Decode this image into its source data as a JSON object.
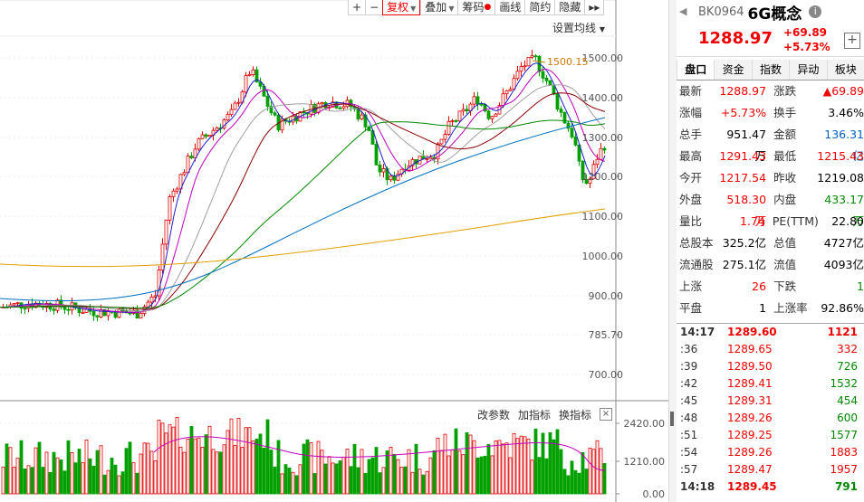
{
  "toolbar": {
    "items": [
      {
        "label": "+"
      },
      {
        "label": "−"
      },
      {
        "label": "复权"
      },
      {
        "label": "叠加"
      },
      {
        "label": "筹码"
      },
      {
        "label": "画线"
      },
      {
        "label": "简约"
      },
      {
        "label": "隐藏"
      },
      {
        "label": "▸▸"
      }
    ],
    "ma_setting": "设置均线"
  },
  "price_axis": [
    "1500.00",
    "1400.00",
    "1300.00",
    "1200.00",
    "1100.00",
    "1000.00",
    "900.00",
    "785.70",
    "700.00"
  ],
  "high_marker": "1500.15",
  "volume": {
    "buttons": {
      "params": "改参数",
      "add": "加指标",
      "switch": "换指标",
      "close": "×"
    },
    "axis": [
      "2420.00",
      "1210.00",
      "0.00"
    ]
  },
  "colors": {
    "up": "#e00000",
    "down": "#00a000",
    "ma5": "#1f1fd0",
    "ma10": "#c000c0",
    "ma20": "#a0a0a0",
    "ma30": "#8b0000",
    "ma60": "#008800",
    "ma120": "#0070c0",
    "ma250": "#e0a000"
  },
  "quote": {
    "code": "BK0964",
    "name": "6G概念",
    "last": "1288.97",
    "change": "+69.89",
    "change_pct": "+5.73%",
    "tabs": [
      "盘口",
      "资金",
      "指数",
      "异动",
      "板块"
    ],
    "rows": [
      {
        "l1": "最新",
        "v1": "1288.97",
        "c1": "red",
        "l2": "涨跌",
        "v2": "▲69.89",
        "c2": "red"
      },
      {
        "l1": "涨幅",
        "v1": "+5.73%",
        "c1": "red",
        "l2": "换手",
        "v2": "3.46%",
        "c2": "blk"
      },
      {
        "l1": "总手",
        "v1": "951.47万",
        "c1": "blk",
        "l2": "金额",
        "v2": "136.31亿",
        "c2": "blue"
      },
      {
        "l1": "最高",
        "v1": "1291.43",
        "c1": "red",
        "l2": "最低",
        "v2": "1215.43",
        "c2": "red"
      },
      {
        "l1": "今开",
        "v1": "1217.54",
        "c1": "red",
        "l2": "昨收",
        "v2": "1219.08",
        "c2": "blk"
      },
      {
        "l1": "外盘",
        "v1": "518.30万",
        "c1": "red",
        "l2": "内盘",
        "v2": "433.17万",
        "c2": "green"
      },
      {
        "l1": "量比",
        "v1": "1.74",
        "c1": "red",
        "l2": "PE(TTM)",
        "v2": "22.80",
        "c2": "blk"
      },
      {
        "l1": "总股本",
        "v1": "325.2亿",
        "c1": "blk",
        "l2": "总值",
        "v2": "4727亿",
        "c2": "blk"
      },
      {
        "l1": "流通股",
        "v1": "275.1亿",
        "c1": "blk",
        "l2": "流值",
        "v2": "4093亿",
        "c2": "blk"
      },
      {
        "l1": "上涨",
        "v1": "26",
        "c1": "red",
        "l2": "下跌",
        "v2": "1",
        "c2": "green"
      },
      {
        "l1": "平盘",
        "v1": "1",
        "c1": "blk",
        "l2": "上涨率",
        "v2": "92.86%",
        "c2": "blk"
      }
    ]
  },
  "ticks": [
    {
      "time": "14:17",
      "price": "1289.60",
      "vol": "1121",
      "vc": "red"
    },
    {
      "time": ":36",
      "price": "1289.65",
      "vol": "332",
      "vc": "red"
    },
    {
      "time": ":39",
      "price": "1289.50",
      "vol": "726",
      "vc": "green"
    },
    {
      "time": ":42",
      "price": "1289.41",
      "vol": "1532",
      "vc": "green"
    },
    {
      "time": ":45",
      "price": "1289.31",
      "vol": "454",
      "vc": "green"
    },
    {
      "time": ":48",
      "price": "1289.26",
      "vol": "600",
      "vc": "green"
    },
    {
      "time": ":51",
      "price": "1289.25",
      "vol": "1577",
      "vc": "green"
    },
    {
      "time": ":54",
      "price": "1289.26",
      "vol": "1883",
      "vc": "red"
    },
    {
      "time": ":57",
      "price": "1289.47",
      "vol": "1957",
      "vc": "red"
    },
    {
      "time": "14:18",
      "price": "1289.45",
      "vol": "791",
      "vc": "green"
    }
  ]
}
